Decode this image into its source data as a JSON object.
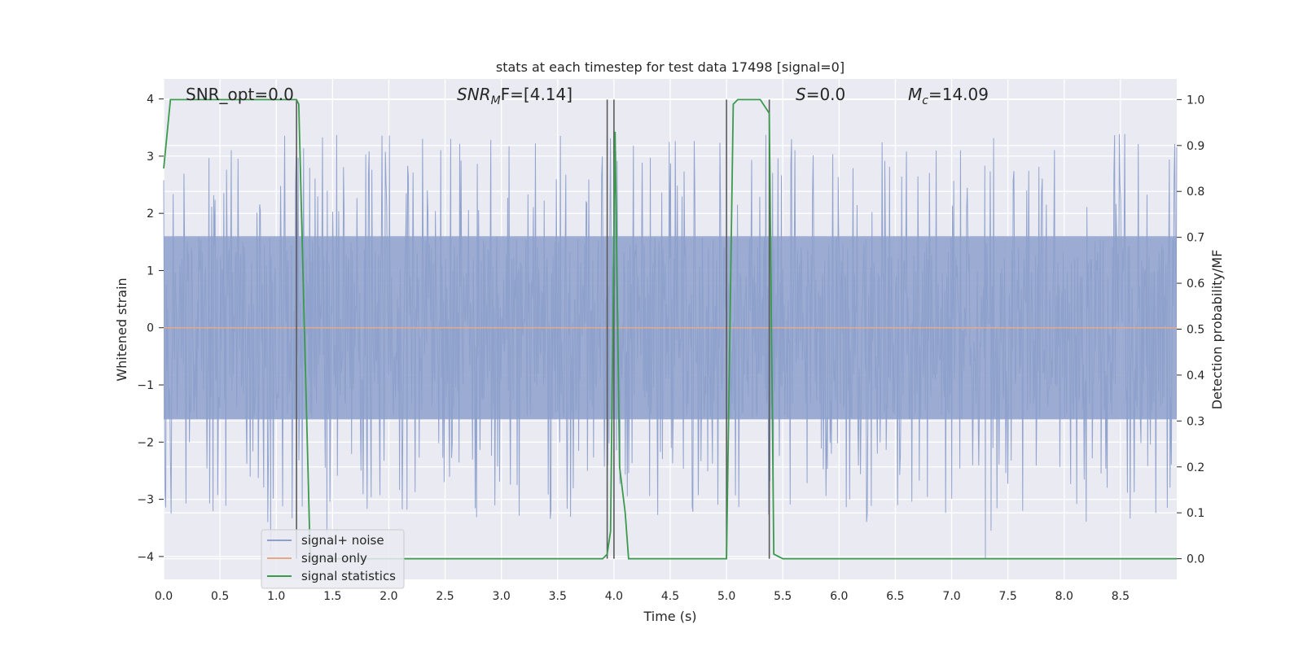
{
  "chart_data": {
    "type": "line",
    "title": "stats at each timestep for test data 17498 [signal=0]",
    "xlabel": "Time (s)",
    "ylabel_left": "Whitened strain",
    "ylabel_right": "Detection probability/MF",
    "xlim": [
      0,
      9.0
    ],
    "ylim_left": [
      -4.4,
      4.35
    ],
    "ylim_right": [
      -0.045,
      1.045
    ],
    "x_ticks": [
      0.0,
      0.5,
      1.0,
      1.5,
      2.0,
      2.5,
      3.0,
      3.5,
      4.0,
      4.5,
      5.0,
      5.5,
      6.0,
      6.5,
      7.0,
      7.5,
      8.0,
      8.5
    ],
    "x_tick_labels": [
      "0.0",
      "0.5",
      "1.0",
      "1.5",
      "2.0",
      "2.5",
      "3.0",
      "3.5",
      "4.0",
      "4.5",
      "5.0",
      "5.5",
      "6.0",
      "6.5",
      "7.0",
      "7.5",
      "8.0",
      "8.5"
    ],
    "y_left_ticks": [
      4,
      3,
      2,
      1,
      0,
      -1,
      -2,
      -3,
      -4
    ],
    "y_left_tick_labels": [
      "4",
      "3",
      "2",
      "1",
      "0",
      "−1",
      "−2",
      "−3",
      "−4"
    ],
    "y_right_ticks": [
      1.0,
      0.9,
      0.8,
      0.7,
      0.6,
      0.5,
      0.4,
      0.3,
      0.2,
      0.1,
      0.0
    ],
    "y_right_tick_labels": [
      "1.0",
      "0.9",
      "0.8",
      "0.7",
      "0.6",
      "0.5",
      "0.4",
      "0.3",
      "0.2",
      "0.1",
      "0.0"
    ],
    "grid": true,
    "legend_position": "lower-left",
    "legend": [
      {
        "name": "signal+ noise",
        "color": "#8da0cb"
      },
      {
        "name": "signal only",
        "color": "#e5a98a"
      },
      {
        "name": "signal statistics",
        "color": "#3c9a4c"
      }
    ],
    "annotations": {
      "snr_opt": "SNR_opt=0.0",
      "snr_mf_main": "SNR",
      "snr_mf_sub": "M",
      "snr_mf_suffix": "F=[4.14]",
      "s_main": "S",
      "s_suffix": "=0.0",
      "mc_main": "M",
      "mc_sub": "c",
      "mc_suffix": "=14.09"
    },
    "noise_series": {
      "name": "signal+ noise",
      "color": "#8da0cb",
      "duration_s": 9.0,
      "band_abs": 1.6,
      "typical_peak_range": [
        2.0,
        3.4
      ],
      "min": -4.05,
      "max": 3.6
    },
    "signal_only_series": {
      "name": "signal only",
      "color": "#e5a98a",
      "value": 0.0
    },
    "stat_series": {
      "name": "signal statistics",
      "color": "#3c9a4c",
      "x": [
        0.0,
        0.06,
        0.1,
        0.2,
        1.18,
        1.2,
        1.25,
        1.3,
        1.31,
        1.35,
        3.0,
        3.9,
        3.94,
        3.97,
        4.01,
        4.05,
        4.1,
        4.13,
        5.0,
        5.06,
        5.1,
        5.15,
        5.3,
        5.38,
        5.42,
        5.5,
        9.0
      ],
      "y": [
        0.85,
        1.0,
        1.0,
        1.0,
        1.0,
        0.99,
        0.5,
        0.02,
        0.0,
        0.0,
        0.0,
        0.0,
        0.01,
        0.06,
        0.93,
        0.2,
        0.1,
        0.0,
        0.0,
        0.99,
        1.0,
        1.0,
        1.0,
        0.97,
        0.01,
        0.0,
        0.0
      ]
    },
    "vertical_lines": [
      1.18,
      3.94,
      4.0,
      5.0,
      5.38
    ],
    "vertical_line_color": "#5a5a5a"
  }
}
